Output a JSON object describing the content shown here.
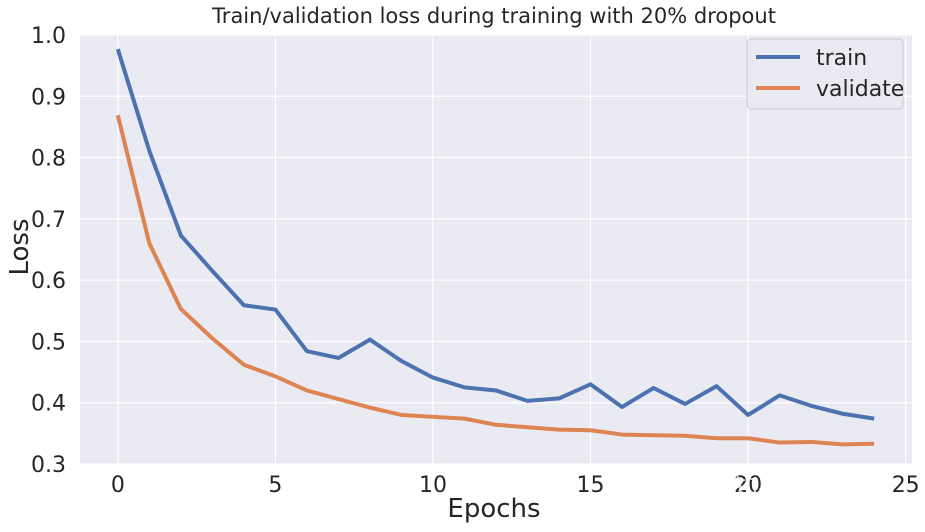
{
  "chart_data": {
    "type": "line",
    "title": "Train/validation loss during training with 20% dropout",
    "xlabel": "Epochs",
    "ylabel": "Loss",
    "xlim": [
      -1.2,
      25.2
    ],
    "ylim": [
      0.3,
      1.0
    ],
    "xticks": [
      0,
      5,
      10,
      15,
      20,
      25
    ],
    "yticks": [
      0.3,
      0.4,
      0.5,
      0.6,
      0.7,
      0.8,
      0.9,
      1.0
    ],
    "x": [
      0,
      1,
      2,
      3,
      4,
      5,
      6,
      7,
      8,
      9,
      10,
      11,
      12,
      13,
      14,
      15,
      16,
      17,
      18,
      19,
      20,
      21,
      22,
      23,
      24
    ],
    "series": [
      {
        "name": "train",
        "color": "#4c72b0",
        "values": [
          0.977,
          0.811,
          0.673,
          0.615,
          0.559,
          0.552,
          0.484,
          0.473,
          0.503,
          0.468,
          0.441,
          0.425,
          0.42,
          0.403,
          0.407,
          0.43,
          0.393,
          0.424,
          0.398,
          0.427,
          0.38,
          0.412,
          0.395,
          0.382,
          0.374
        ]
      },
      {
        "name": "validate",
        "color": "#dd8452",
        "values": [
          0.869,
          0.66,
          0.553,
          0.505,
          0.462,
          0.443,
          0.42,
          0.406,
          0.392,
          0.38,
          0.377,
          0.374,
          0.364,
          0.36,
          0.356,
          0.355,
          0.348,
          0.347,
          0.346,
          0.342,
          0.342,
          0.335,
          0.336,
          0.332,
          0.333
        ]
      }
    ],
    "legend_position": "top-right",
    "grid": true
  },
  "watermark": "知乎 @打工仔",
  "colors": {
    "plot_background": "#eaeaf2",
    "grid": "#ffffff",
    "text": "#262626"
  }
}
